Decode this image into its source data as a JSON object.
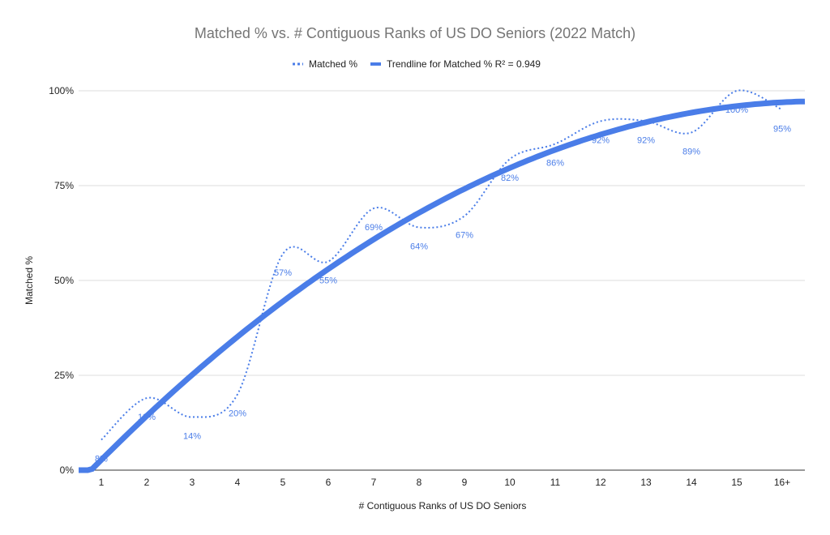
{
  "chart_data": {
    "type": "line",
    "title": "Matched % vs. # Contiguous Ranks of US DO Seniors (2022 Match)",
    "xlabel": "# Contiguous Ranks of US DO Seniors",
    "ylabel": "Matched %",
    "categories": [
      "1",
      "2",
      "3",
      "4",
      "5",
      "6",
      "7",
      "8",
      "9",
      "10",
      "11",
      "12",
      "13",
      "14",
      "15",
      "16+"
    ],
    "series": [
      {
        "name": "Matched %",
        "style": "dotted smooth",
        "color": "#4a7de8",
        "values": [
          8,
          19,
          14,
          20,
          57,
          55,
          69,
          64,
          67,
          82,
          86,
          92,
          92,
          89,
          100,
          95
        ],
        "labels": [
          "8%",
          "19%",
          "14%",
          "20%",
          "57%",
          "55%",
          "69%",
          "64%",
          "67%",
          "82%",
          "86%",
          "92%",
          "92%",
          "89%",
          "100%",
          "95%"
        ]
      },
      {
        "name": "Trendline for Matched % R² = 0.949",
        "style": "thick trendline",
        "color": "#4a7de8",
        "fit": "polynomial",
        "r_squared": 0.949
      }
    ],
    "legend_labels": [
      "Matched %",
      "Trendline for Matched % R² = 0.949"
    ],
    "ylim": [
      0,
      100
    ],
    "yticks": [
      "0%",
      "25%",
      "50%",
      "75%",
      "100%"
    ],
    "ytick_values": [
      0,
      25,
      50,
      75,
      100
    ],
    "grid": true,
    "legend": "top"
  }
}
